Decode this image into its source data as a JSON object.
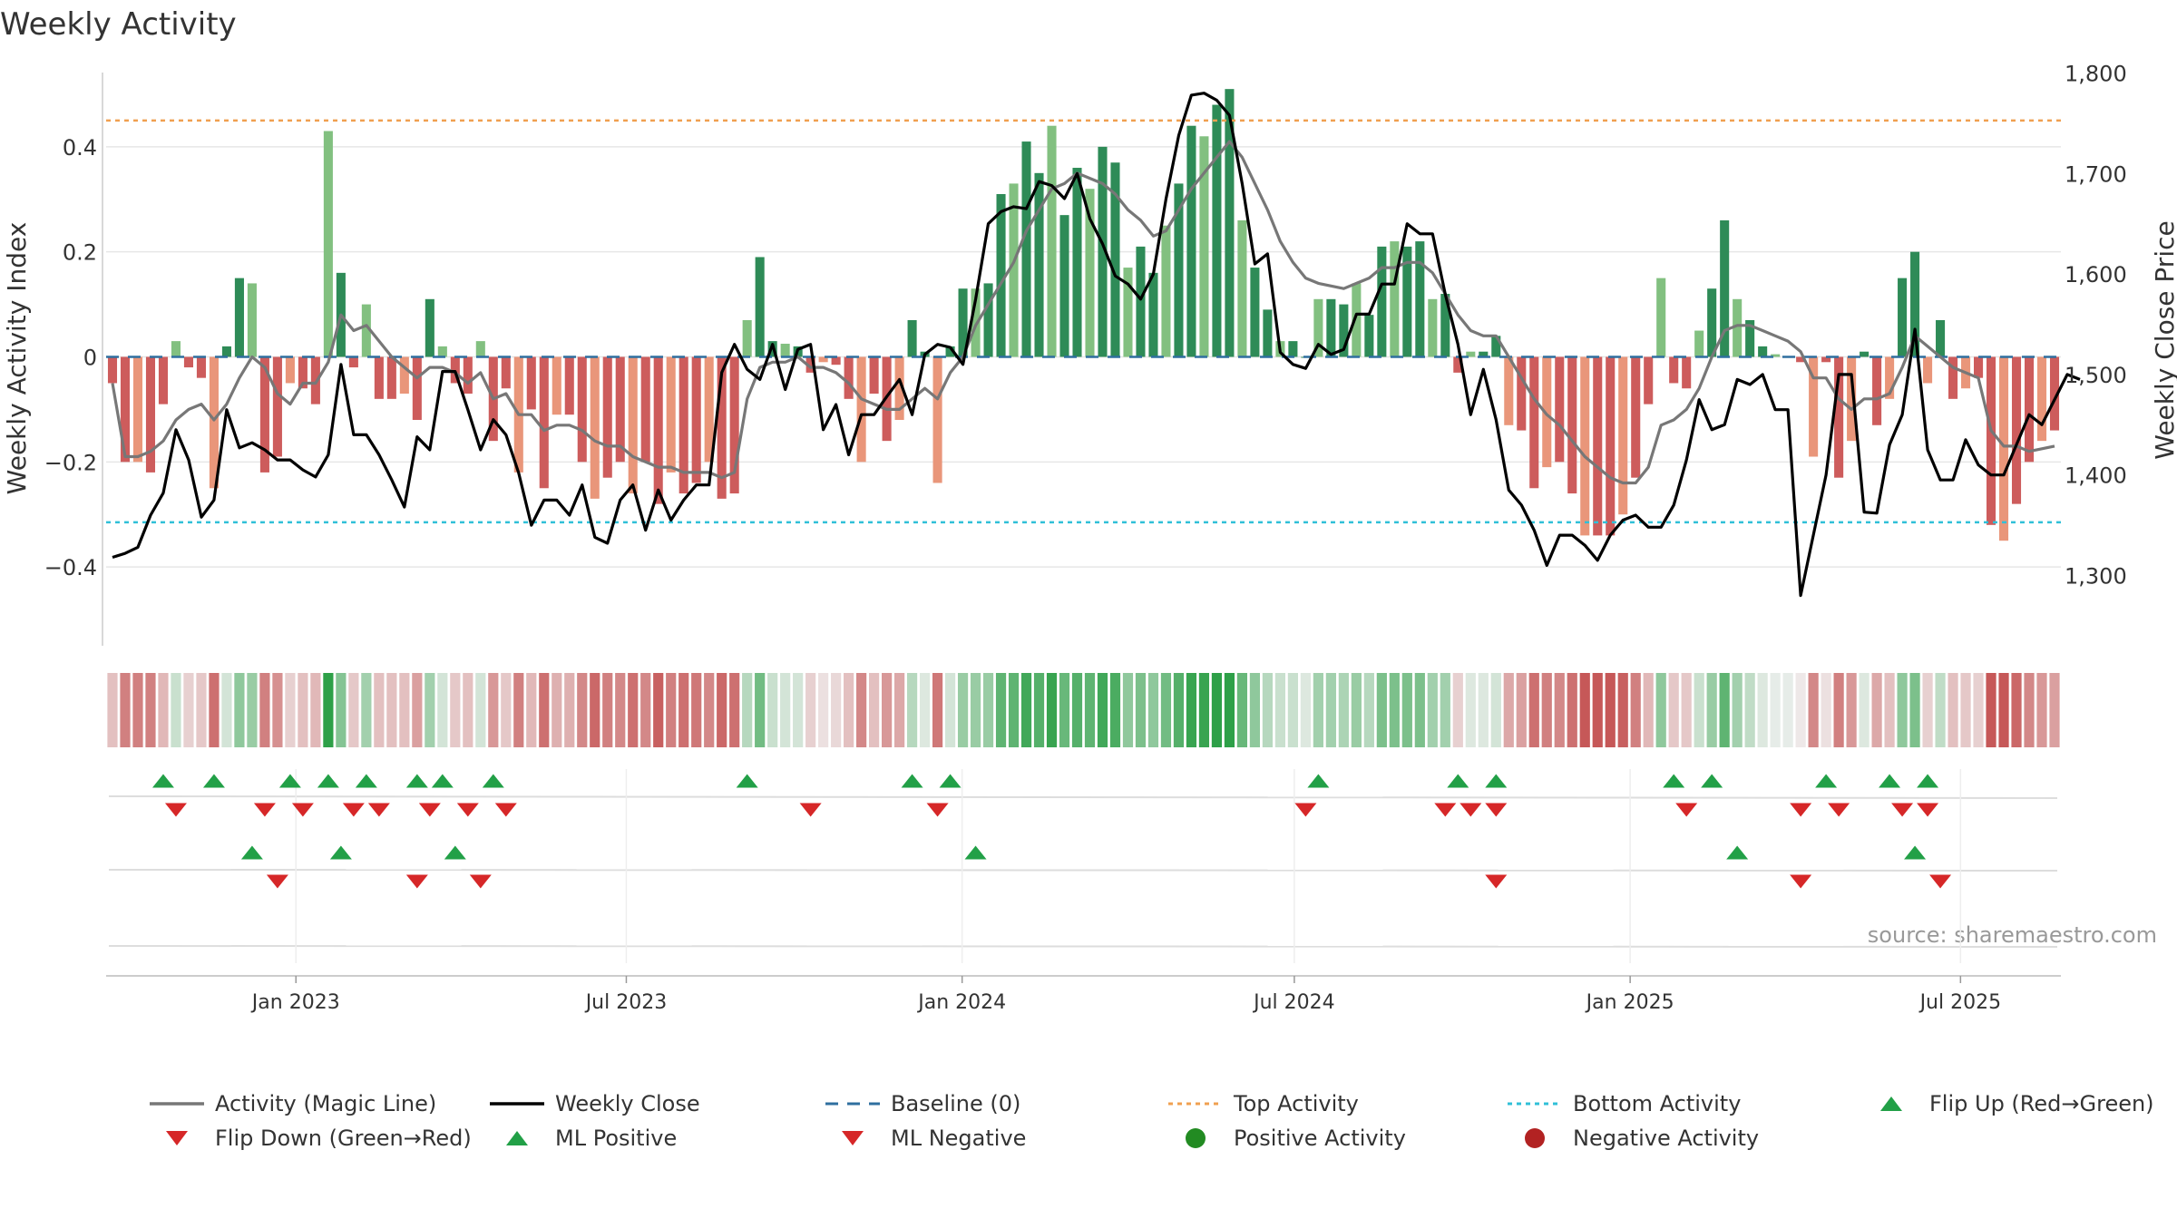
{
  "chart_data": {
    "type": "bar",
    "title": "Weekly Activity",
    "ylabel_left": "Weekly Activity Index",
    "ylabel_right": "Weekly Close Price",
    "source": "source: sharemaestro.com",
    "y_left": {
      "lim": [
        -0.55,
        0.55
      ],
      "ticks": [
        0.4,
        0.2,
        0,
        -0.2,
        -0.4
      ],
      "tick_labels": [
        "0.4",
        "0.2",
        "0",
        "−0.2",
        "−0.4"
      ]
    },
    "y_right": {
      "lim": [
        1230,
        1805
      ],
      "ticks": [
        1800,
        1700,
        1600,
        1500,
        1400,
        1300
      ],
      "tick_labels": [
        "1,800",
        "1,700",
        "1,600",
        "1,500",
        "1,400",
        "1,300"
      ]
    },
    "x_dates": {
      "start": "2022-09-19",
      "end": "2025-08-25",
      "weeks": 154
    },
    "x_ticks": [
      {
        "date": "2023-01-01",
        "label": "Jan 2023"
      },
      {
        "date": "2023-07-01",
        "label": "Jul 2023"
      },
      {
        "date": "2024-01-01",
        "label": "Jan 2024"
      },
      {
        "date": "2024-07-01",
        "label": "Jul 2024"
      },
      {
        "date": "2025-01-01",
        "label": "Jan 2025"
      },
      {
        "date": "2025-07-01",
        "label": "Jul 2025"
      }
    ],
    "top_activity": 0.45,
    "bottom_activity": -0.315,
    "baseline": 0,
    "activity": [
      -0.05,
      -0.2,
      -0.2,
      -0.22,
      -0.09,
      0.03,
      -0.02,
      -0.04,
      -0.25,
      0.02,
      0.15,
      0.14,
      -0.22,
      -0.19,
      -0.05,
      -0.06,
      -0.09,
      0.43,
      0.16,
      -0.02,
      0.1,
      -0.08,
      -0.08,
      -0.07,
      -0.12,
      0.11,
      0.02,
      -0.05,
      -0.07,
      0.03,
      -0.16,
      -0.06,
      -0.22,
      -0.1,
      -0.25,
      -0.11,
      -0.11,
      -0.2,
      -0.27,
      -0.23,
      -0.2,
      -0.26,
      -0.2,
      -0.28,
      -0.22,
      -0.26,
      -0.24,
      -0.2,
      -0.27,
      -0.26,
      0.07,
      0.19,
      0.03,
      0.025,
      0.02,
      -0.03,
      -0.01,
      -0.015,
      -0.08,
      -0.2,
      -0.07,
      -0.16,
      -0.12,
      0.07,
      0.01,
      -0.24,
      0.02,
      0.13,
      0.13,
      0.14,
      0.31,
      0.33,
      0.41,
      0.35,
      0.44,
      0.27,
      0.36,
      0.32,
      0.4,
      0.37,
      0.17,
      0.21,
      0.16,
      0.25,
      0.33,
      0.44,
      0.42,
      0.48,
      0.51,
      0.26,
      0.17,
      0.09,
      0.03,
      0.03,
      0,
      0.11,
      0.11,
      0.1,
      0.14,
      0.08,
      0.21,
      0.22,
      0.21,
      0.22,
      0.11,
      0.12,
      -0.03,
      0.01,
      0.01,
      0.04,
      -0.13,
      -0.14,
      -0.25,
      -0.21,
      -0.2,
      -0.26,
      -0.34,
      -0.34,
      -0.34,
      -0.3,
      -0.23,
      -0.09,
      0.15,
      -0.05,
      -0.06,
      0.05,
      0.13,
      0.26,
      0.11,
      0.07,
      0.02,
      0.005,
      0,
      -0.01,
      -0.19,
      -0.01,
      -0.23,
      -0.16,
      0.01,
      -0.13,
      -0.08,
      0.15,
      0.2,
      -0.05,
      0.07,
      -0.08,
      -0.06,
      -0.04,
      -0.32,
      -0.35,
      -0.28,
      -0.2,
      -0.16,
      -0.14
    ],
    "magic_line": [
      -0.05,
      -0.19,
      -0.19,
      -0.18,
      -0.16,
      -0.12,
      -0.1,
      -0.09,
      -0.12,
      -0.09,
      -0.04,
      0.0,
      -0.02,
      -0.07,
      -0.09,
      -0.05,
      -0.05,
      -0.01,
      0.08,
      0.05,
      0.06,
      0.03,
      0.0,
      -0.02,
      -0.04,
      -0.02,
      -0.02,
      -0.03,
      -0.05,
      -0.03,
      -0.08,
      -0.07,
      -0.11,
      -0.11,
      -0.14,
      -0.13,
      -0.13,
      -0.14,
      -0.16,
      -0.17,
      -0.17,
      -0.19,
      -0.2,
      -0.21,
      -0.21,
      -0.22,
      -0.22,
      -0.22,
      -0.23,
      -0.22,
      -0.08,
      -0.02,
      -0.01,
      -0.01,
      0.0,
      -0.02,
      -0.02,
      -0.03,
      -0.05,
      -0.08,
      -0.09,
      -0.1,
      -0.1,
      -0.08,
      -0.06,
      -0.08,
      -0.03,
      0.0,
      0.06,
      0.1,
      0.14,
      0.18,
      0.24,
      0.28,
      0.32,
      0.33,
      0.35,
      0.34,
      0.33,
      0.31,
      0.28,
      0.26,
      0.23,
      0.24,
      0.28,
      0.32,
      0.35,
      0.38,
      0.41,
      0.38,
      0.33,
      0.28,
      0.22,
      0.18,
      0.15,
      0.14,
      0.135,
      0.13,
      0.14,
      0.15,
      0.17,
      0.17,
      0.18,
      0.18,
      0.16,
      0.12,
      0.08,
      0.05,
      0.04,
      0.04,
      0.0,
      -0.04,
      -0.08,
      -0.11,
      -0.13,
      -0.16,
      -0.19,
      -0.21,
      -0.23,
      -0.24,
      -0.24,
      -0.21,
      -0.13,
      -0.12,
      -0.1,
      -0.06,
      0.0,
      0.05,
      0.06,
      0.06,
      0.05,
      0.04,
      0.03,
      0.01,
      -0.04,
      -0.04,
      -0.08,
      -0.1,
      -0.08,
      -0.08,
      -0.07,
      -0.02,
      0.04,
      0.02,
      0.0,
      -0.02,
      -0.03,
      -0.04,
      -0.14,
      -0.17,
      -0.17,
      -0.18,
      -0.175,
      -0.17
    ],
    "weekly_close": [
      1318,
      1322,
      1328,
      1360,
      1382,
      1445,
      1415,
      1358,
      1375,
      1465,
      1427,
      1432,
      1425,
      1415,
      1415,
      1405,
      1398,
      1420,
      1510,
      1440,
      1440,
      1420,
      1395,
      1368,
      1438,
      1425,
      1503,
      1503,
      1465,
      1425,
      1455,
      1440,
      1402,
      1350,
      1375,
      1375,
      1360,
      1390,
      1338,
      1332,
      1375,
      1390,
      1345,
      1385,
      1355,
      1375,
      1390,
      1390,
      1502,
      1530,
      1505,
      1495,
      1530,
      1485,
      1525,
      1530,
      1445,
      1470,
      1420,
      1460,
      1460,
      1478,
      1495,
      1460,
      1520,
      1530,
      1527,
      1510,
      1575,
      1650,
      1662,
      1667,
      1665,
      1692,
      1688,
      1675,
      1700,
      1655,
      1630,
      1598,
      1590,
      1575,
      1600,
      1675,
      1738,
      1778,
      1780,
      1773,
      1758,
      1690,
      1610,
      1620,
      1522,
      1510,
      1506,
      1530,
      1520,
      1525,
      1560,
      1560,
      1590,
      1590,
      1650,
      1640,
      1640,
      1580,
      1530,
      1460,
      1505,
      1455,
      1385,
      1370,
      1345,
      1310,
      1340,
      1340,
      1330,
      1315,
      1340,
      1355,
      1360,
      1348,
      1348,
      1370,
      1415,
      1475,
      1445,
      1450,
      1495,
      1490,
      1500,
      1465,
      1465,
      1280,
      1340,
      1400,
      1500,
      1500,
      1363,
      1362,
      1430,
      1460,
      1545,
      1425,
      1395,
      1395,
      1435,
      1410,
      1400,
      1400,
      1430,
      1460,
      1450,
      1475,
      1500,
      1495
    ],
    "strip_intensity": [
      0.3,
      0.7,
      0.7,
      0.7,
      0.35,
      0.2,
      0.2,
      0.25,
      0.8,
      0.15,
      0.5,
      0.45,
      0.7,
      0.6,
      0.2,
      0.3,
      0.35,
      1.0,
      0.55,
      0.25,
      0.4,
      0.3,
      0.3,
      0.3,
      0.5,
      0.4,
      0.15,
      0.25,
      0.3,
      0.15,
      0.55,
      0.25,
      0.7,
      0.35,
      0.8,
      0.4,
      0.4,
      0.65,
      0.85,
      0.7,
      0.65,
      0.8,
      0.65,
      0.9,
      0.7,
      0.8,
      0.75,
      0.65,
      0.85,
      0.8,
      0.3,
      0.65,
      0.2,
      0.15,
      0.15,
      0.2,
      0.1,
      0.15,
      0.3,
      0.65,
      0.3,
      0.55,
      0.45,
      0.3,
      0.1,
      0.75,
      0.15,
      0.45,
      0.45,
      0.45,
      0.75,
      0.75,
      0.9,
      0.8,
      0.95,
      0.7,
      0.8,
      0.75,
      0.9,
      0.85,
      0.5,
      0.6,
      0.5,
      0.65,
      0.8,
      0.95,
      0.95,
      1.0,
      1.0,
      0.7,
      0.5,
      0.3,
      0.2,
      0.2,
      0.1,
      0.4,
      0.4,
      0.35,
      0.45,
      0.3,
      0.6,
      0.6,
      0.6,
      0.6,
      0.4,
      0.4,
      0.2,
      0.1,
      0.1,
      0.15,
      0.45,
      0.5,
      0.8,
      0.7,
      0.65,
      0.8,
      0.95,
      0.95,
      0.95,
      0.9,
      0.7,
      0.35,
      0.5,
      0.25,
      0.25,
      0.2,
      0.45,
      0.75,
      0.4,
      0.25,
      0.1,
      0.05,
      0.05,
      0.05,
      0.65,
      0.1,
      0.7,
      0.55,
      0.1,
      0.45,
      0.3,
      0.5,
      0.6,
      0.2,
      0.25,
      0.3,
      0.25,
      0.2,
      0.95,
      0.95,
      0.85,
      0.65,
      0.55,
      0.5
    ],
    "events": {
      "flip_up": [
        4,
        8,
        14,
        17,
        20,
        24,
        26,
        30,
        50,
        63,
        66,
        95,
        106,
        109,
        123,
        126,
        135,
        140,
        143
      ],
      "flip_down": [
        5,
        12,
        15,
        19,
        21,
        25,
        28,
        31,
        55,
        65,
        94,
        105,
        107,
        109,
        124,
        133,
        136,
        141,
        143
      ],
      "ml_positive": [
        11,
        18,
        27,
        68,
        128,
        142
      ],
      "ml_negative": [
        13,
        24,
        29,
        109,
        133,
        144
      ]
    }
  },
  "legend": [
    {
      "label": "Activity (Magic Line)",
      "kind": "line",
      "color": "#777777"
    },
    {
      "label": "Weekly Close",
      "kind": "line",
      "color": "#000000"
    },
    {
      "label": "Baseline (0)",
      "kind": "dash",
      "color": "#2f6f9f"
    },
    {
      "label": "Top Activity",
      "kind": "dot",
      "color": "#f0a050"
    },
    {
      "label": "Bottom Activity",
      "kind": "dot",
      "color": "#30c0d8"
    },
    {
      "label": "Flip Up (Red→Green)",
      "kind": "tri-up",
      "color": "#22a047"
    },
    {
      "label": "Flip Down (Green→Red)",
      "kind": "tri-down",
      "color": "#d62728"
    },
    {
      "label": "ML Positive",
      "kind": "tri-up",
      "color": "#22a047"
    },
    {
      "label": "ML Negative",
      "kind": "tri-down",
      "color": "#d62728"
    },
    {
      "label": "Positive Activity",
      "kind": "circle",
      "color": "#228b22"
    },
    {
      "label": "Negative Activity",
      "kind": "circle",
      "color": "#b22222"
    }
  ],
  "colors": {
    "pos_strong": "#2e8b57",
    "pos_light": "#82c080",
    "neg_strong": "#cd5c5c",
    "neg_light": "#e9967a",
    "magic": "#777777",
    "close": "#000000",
    "top": "#f0a050",
    "bottom": "#30c0d8",
    "baseline": "#2f6f9f",
    "grid": "#e6e6e6",
    "axis": "#cccccc",
    "text": "#333333"
  }
}
